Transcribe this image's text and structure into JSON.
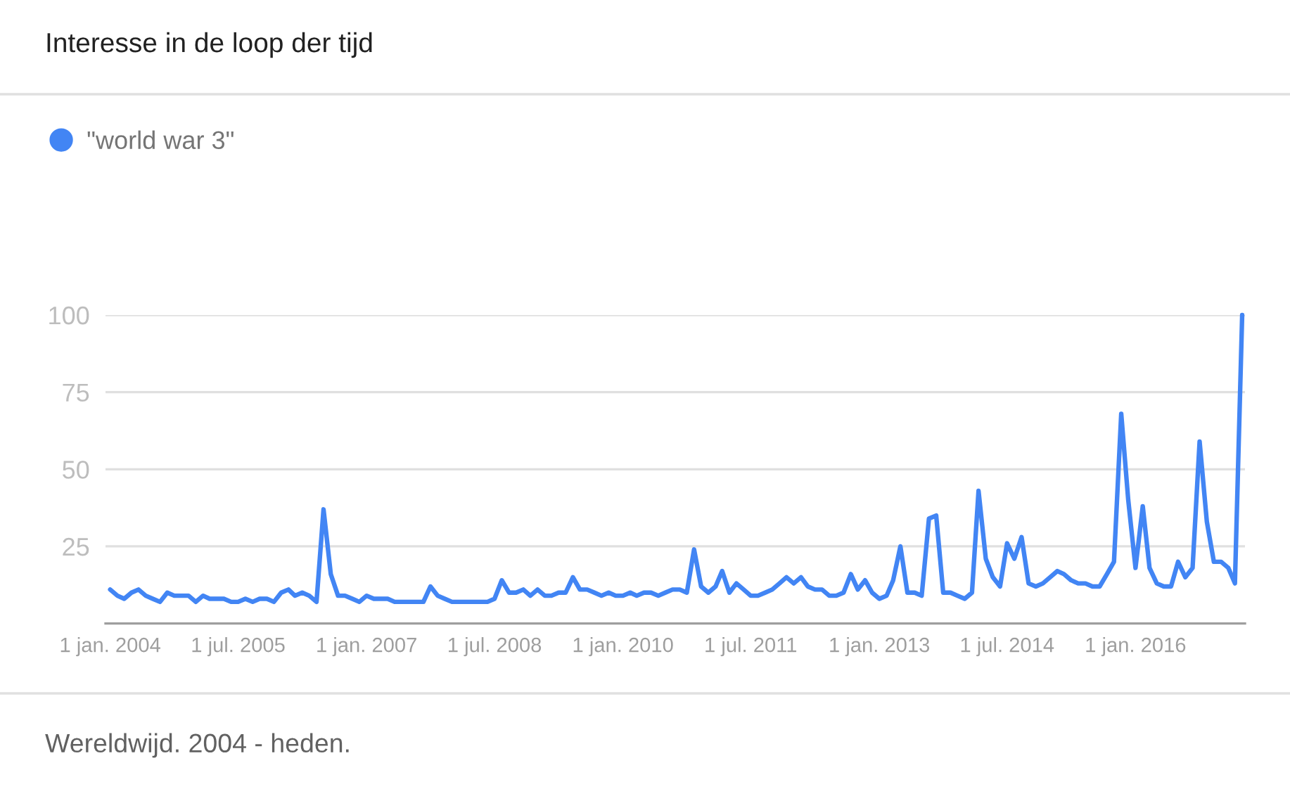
{
  "chart_data": {
    "type": "line",
    "title": "Interesse in de loop der tijd",
    "annotations": [
      "Wereldwijd. 2004 - heden."
    ],
    "x": [
      "2004-01",
      "2004-02",
      "2004-03",
      "2004-04",
      "2004-05",
      "2004-06",
      "2004-07",
      "2004-08",
      "2004-09",
      "2004-10",
      "2004-12",
      "2005-01",
      "2005-02",
      "2005-03",
      "2005-05",
      "2005-06",
      "2005-07",
      "2005-08",
      "2005-09",
      "2005-10",
      "2005-11",
      "2005-12",
      "2006-01",
      "2006-02",
      "2006-03",
      "2006-04",
      "2006-05",
      "2006-06",
      "2006-07",
      "2006-08",
      "2006-09",
      "2006-10",
      "2006-11",
      "2006-12",
      "2007-01",
      "2007-02",
      "2007-04",
      "2007-05",
      "2007-09",
      "2007-10",
      "2007-11",
      "2007-12",
      "2008-01",
      "2008-06",
      "2008-07",
      "2008-08",
      "2008-09",
      "2008-10",
      "2008-11",
      "2008-12",
      "2009-01",
      "2009-02",
      "2009-03",
      "2009-04",
      "2009-05",
      "2009-06",
      "2009-07",
      "2009-08",
      "2009-09",
      "2009-10",
      "2009-11",
      "2009-12",
      "2010-01",
      "2010-02",
      "2010-03",
      "2010-04",
      "2010-05",
      "2010-06",
      "2010-07",
      "2010-08",
      "2010-09",
      "2010-10",
      "2010-11",
      "2010-12",
      "2011-01",
      "2011-02",
      "2011-03",
      "2011-04",
      "2011-05",
      "2011-06",
      "2011-07",
      "2011-08",
      "2011-09",
      "2011-10",
      "2011-11",
      "2011-12",
      "2012-01",
      "2012-02",
      "2012-03",
      "2012-04",
      "2012-05",
      "2012-06",
      "2012-07",
      "2012-08",
      "2012-09",
      "2012-10",
      "2012-11",
      "2012-12",
      "2013-01",
      "2013-02",
      "2013-03",
      "2013-04",
      "2013-05",
      "2013-06",
      "2013-07",
      "2013-08",
      "2013-09",
      "2013-10",
      "2013-11",
      "2013-12",
      "2014-01",
      "2014-02",
      "2014-03",
      "2014-04",
      "2014-05",
      "2014-06",
      "2014-07",
      "2014-08",
      "2014-09",
      "2014-10",
      "2014-11",
      "2014-12",
      "2015-01",
      "2015-02",
      "2015-03",
      "2015-04",
      "2015-05",
      "2015-06",
      "2015-07",
      "2015-08",
      "2015-09",
      "2015-10",
      "2015-11",
      "2015-12",
      "2016-01",
      "2016-02",
      "2016-03",
      "2016-04",
      "2016-05",
      "2016-06",
      "2016-07",
      "2016-08",
      "2016-09",
      "2016-10",
      "2016-11",
      "2016-12",
      "2017-01",
      "2017-02",
      "2017-03",
      "2017-04"
    ],
    "series": [
      {
        "name": "\"world war 3\"",
        "color": "#4285f4",
        "values": [
          11,
          9,
          8,
          10,
          11,
          9,
          8,
          7,
          10,
          9,
          9,
          7,
          9,
          8,
          8,
          7,
          7,
          8,
          7,
          8,
          8,
          7,
          10,
          11,
          9,
          10,
          9,
          7,
          37,
          16,
          9,
          9,
          8,
          7,
          9,
          8,
          8,
          7,
          7,
          12,
          9,
          8,
          7,
          7,
          8,
          14,
          10,
          10,
          11,
          9,
          11,
          9,
          9,
          10,
          10,
          15,
          11,
          11,
          10,
          9,
          10,
          9,
          9,
          10,
          9,
          10,
          10,
          9,
          10,
          11,
          11,
          10,
          24,
          12,
          10,
          12,
          17,
          10,
          13,
          11,
          9,
          9,
          10,
          11,
          13,
          15,
          13,
          15,
          12,
          11,
          11,
          9,
          9,
          10,
          16,
          11,
          14,
          10,
          8,
          9,
          14,
          25,
          10,
          10,
          9,
          34,
          35,
          10,
          10,
          9,
          8,
          10,
          43,
          21,
          15,
          12,
          26,
          21,
          28,
          13,
          12,
          13,
          15,
          17,
          16,
          14,
          13,
          13,
          12,
          12,
          16,
          20,
          68,
          40,
          18,
          38,
          18,
          13,
          12,
          12,
          20,
          15,
          18,
          59,
          33,
          20,
          20,
          18,
          13,
          100
        ]
      }
    ],
    "xlim": [
      "2003-12-12",
      "2017-04-13"
    ],
    "xticks": [
      {
        "value": "2004-01-01",
        "label": "1 jan. 2004"
      },
      {
        "value": "2005-07-01",
        "label": "1 jul. 2005"
      },
      {
        "value": "2007-01-01",
        "label": "1 jan. 2007"
      },
      {
        "value": "2008-07-01",
        "label": "1 jul. 2008"
      },
      {
        "value": "2010-01-01",
        "label": "1 jan. 2010"
      },
      {
        "value": "2011-07-01",
        "label": "1 jul. 2011"
      },
      {
        "value": "2013-01-01",
        "label": "1 jan. 2013"
      },
      {
        "value": "2014-07-01",
        "label": "1 jul. 2014"
      },
      {
        "value": "2016-01-01",
        "label": "1 jan. 2016"
      }
    ],
    "ylim": [
      0,
      100
    ],
    "yticks": [
      25,
      50,
      75,
      100
    ],
    "grid": "y",
    "legend": "top left"
  }
}
